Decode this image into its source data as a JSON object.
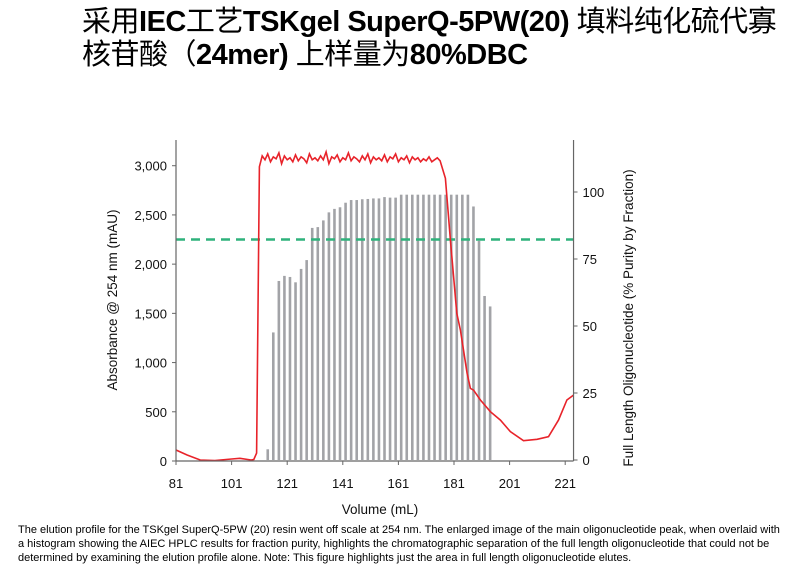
{
  "title": {
    "line1": [
      {
        "text": "采用",
        "bold": false
      },
      {
        "text": "IEC",
        "bold": true
      },
      {
        "text": "工艺",
        "bold": false
      },
      {
        "text": "TSKgel SuperQ-5PW(20)",
        "bold": true
      },
      {
        "text": " 填料纯化硫代寡",
        "bold": false
      }
    ],
    "line2": [
      {
        "text": "核苷酸（",
        "bold": false
      },
      {
        "text": "24mer)",
        "bold": true
      },
      {
        "text": " 上样量为",
        "bold": false
      },
      {
        "text": "80%DBC",
        "bold": true
      }
    ]
  },
  "caption": "The elution profile for the TSKgel SuperQ-5PW (20) resin went off scale at 254 nm. The enlarged image of the main oligonucleotide peak, when overlaid with a histogram showing the AIEC HPLC results for fraction purity, highlights the chromatographic separation of the full length oligonucleotide that could not be determined by examining the elution profile alone. Note: This  figure highlights just the area in full length oligonucleotide elutes.",
  "chart_data": {
    "type": "line+bar",
    "xlabel": "Volume (mL)",
    "ylabel_left": "Absorbance @ 254 nm (mAU)",
    "ylabel_right": "Full Length Oligonucleotide (% Purity by Fraction)",
    "xlim": [
      81,
      224
    ],
    "ylim_left": [
      0,
      3250
    ],
    "ylim_right": [
      0,
      120
    ],
    "x_ticks": [
      "81",
      "101",
      "121",
      "141",
      "161",
      "181",
      "201",
      "221"
    ],
    "y_ticks_left": [
      "0",
      "500",
      "1,000",
      "1,500",
      "2,000",
      "2,500",
      "3,000"
    ],
    "y_ticks_right": [
      "0",
      "25",
      "50",
      "75",
      "100"
    ],
    "grid": false,
    "colors": {
      "absorbance": "#e8232a",
      "purity_bars": "#a2a3a7",
      "threshold": "#2fb27c"
    },
    "threshold_line_mAU": 2250,
    "absorbance_series": {
      "x": [
        81,
        85,
        89.7,
        95,
        101,
        104,
        108,
        109,
        110,
        111,
        112,
        113,
        114,
        115,
        116,
        117,
        118,
        119,
        120,
        121,
        122,
        123,
        124,
        125,
        126,
        127,
        128,
        129,
        130,
        131,
        132,
        133,
        134,
        135,
        136,
        137,
        138,
        139,
        140,
        141,
        142,
        143,
        144,
        145,
        146,
        147,
        148,
        149,
        150,
        151,
        152,
        153,
        154,
        155,
        156,
        157,
        158,
        159,
        160,
        161,
        162,
        163,
        164,
        165,
        166,
        167,
        168,
        169,
        170,
        171,
        172,
        173,
        174,
        175,
        176,
        177.9,
        179.7,
        182,
        183.3,
        185.7,
        186.9,
        188,
        190.5,
        194.1,
        197.7,
        201.3,
        206,
        210.9,
        215,
        218.6,
        221.6,
        225.2
      ],
      "y": [
        112,
        61,
        10,
        5,
        20,
        27,
        10,
        15,
        80,
        2990,
        3100,
        3060,
        3120,
        3040,
        3090,
        3070,
        3130,
        3020,
        3100,
        3060,
        3080,
        3040,
        3110,
        3050,
        3090,
        3070,
        3030,
        3120,
        3060,
        3080,
        3050,
        3100,
        3060,
        3140,
        3020,
        3090,
        3070,
        3110,
        3040,
        3080,
        3060,
        3130,
        3050,
        3090,
        3070,
        3040,
        3100,
        3060,
        3120,
        3030,
        3090,
        3060,
        3080,
        3050,
        3110,
        3040,
        3090,
        3070,
        3120,
        3040,
        3080,
        3060,
        3100,
        3030,
        3090,
        3060,
        3080,
        3040,
        3070,
        3050,
        3090,
        3040,
        3060,
        3080,
        3050,
        2872,
        2245,
        1500,
        1331,
        891,
        738,
        720,
        620,
        501,
        416,
        298,
        206,
        220,
        247,
        416,
        620,
        670
      ]
    },
    "purity_bars": {
      "x": [
        114,
        116,
        118,
        120,
        122,
        124,
        126,
        128,
        130,
        132,
        134,
        136,
        138,
        140,
        142,
        144,
        146,
        148,
        150,
        152,
        154,
        156,
        158,
        160,
        162,
        164,
        166,
        168,
        170,
        172,
        174,
        176,
        178,
        180,
        182,
        184,
        186,
        188,
        190,
        192,
        194
      ],
      "values": [
        4,
        47.6,
        66.8,
        68.7,
        68.3,
        66.3,
        71.3,
        74.6,
        86.6,
        86.9,
        89.4,
        92.4,
        93.7,
        94.3,
        96,
        97,
        97,
        97.3,
        97.4,
        97.6,
        97.6,
        98.1,
        97.9,
        97.9,
        99,
        99,
        99,
        99,
        99,
        99,
        99,
        99,
        99,
        99,
        99,
        99,
        99,
        94.6,
        81.8,
        61.2,
        57.3
      ]
    }
  }
}
